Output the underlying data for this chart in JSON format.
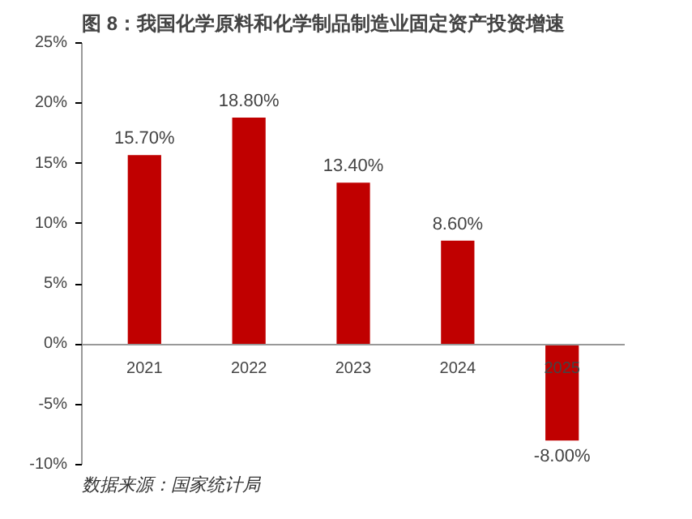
{
  "chart_data": {
    "type": "bar",
    "title": "图 8：我国化学原料和化学制品制造业固定资产投资增速",
    "categories": [
      "2021",
      "2022",
      "2023",
      "2024",
      "2025"
    ],
    "values": [
      15.7,
      18.8,
      13.4,
      8.6,
      -8.0
    ],
    "value_labels": [
      "15.70%",
      "18.80%",
      "13.40%",
      "8.60%",
      "-8.00%"
    ],
    "color": "#c00000",
    "ylim": [
      -10,
      25
    ],
    "yticks": [
      {
        "value": -10,
        "label": "-10%"
      },
      {
        "value": -5,
        "label": "-5%"
      },
      {
        "value": 0,
        "label": "0%"
      },
      {
        "value": 5,
        "label": "5%"
      },
      {
        "value": 10,
        "label": "10%"
      },
      {
        "value": 15,
        "label": "15%"
      },
      {
        "value": 20,
        "label": "20%"
      },
      {
        "value": 25,
        "label": "25%"
      }
    ],
    "grid": false,
    "annotations": [
      "数据来源：国家统计局"
    ]
  }
}
